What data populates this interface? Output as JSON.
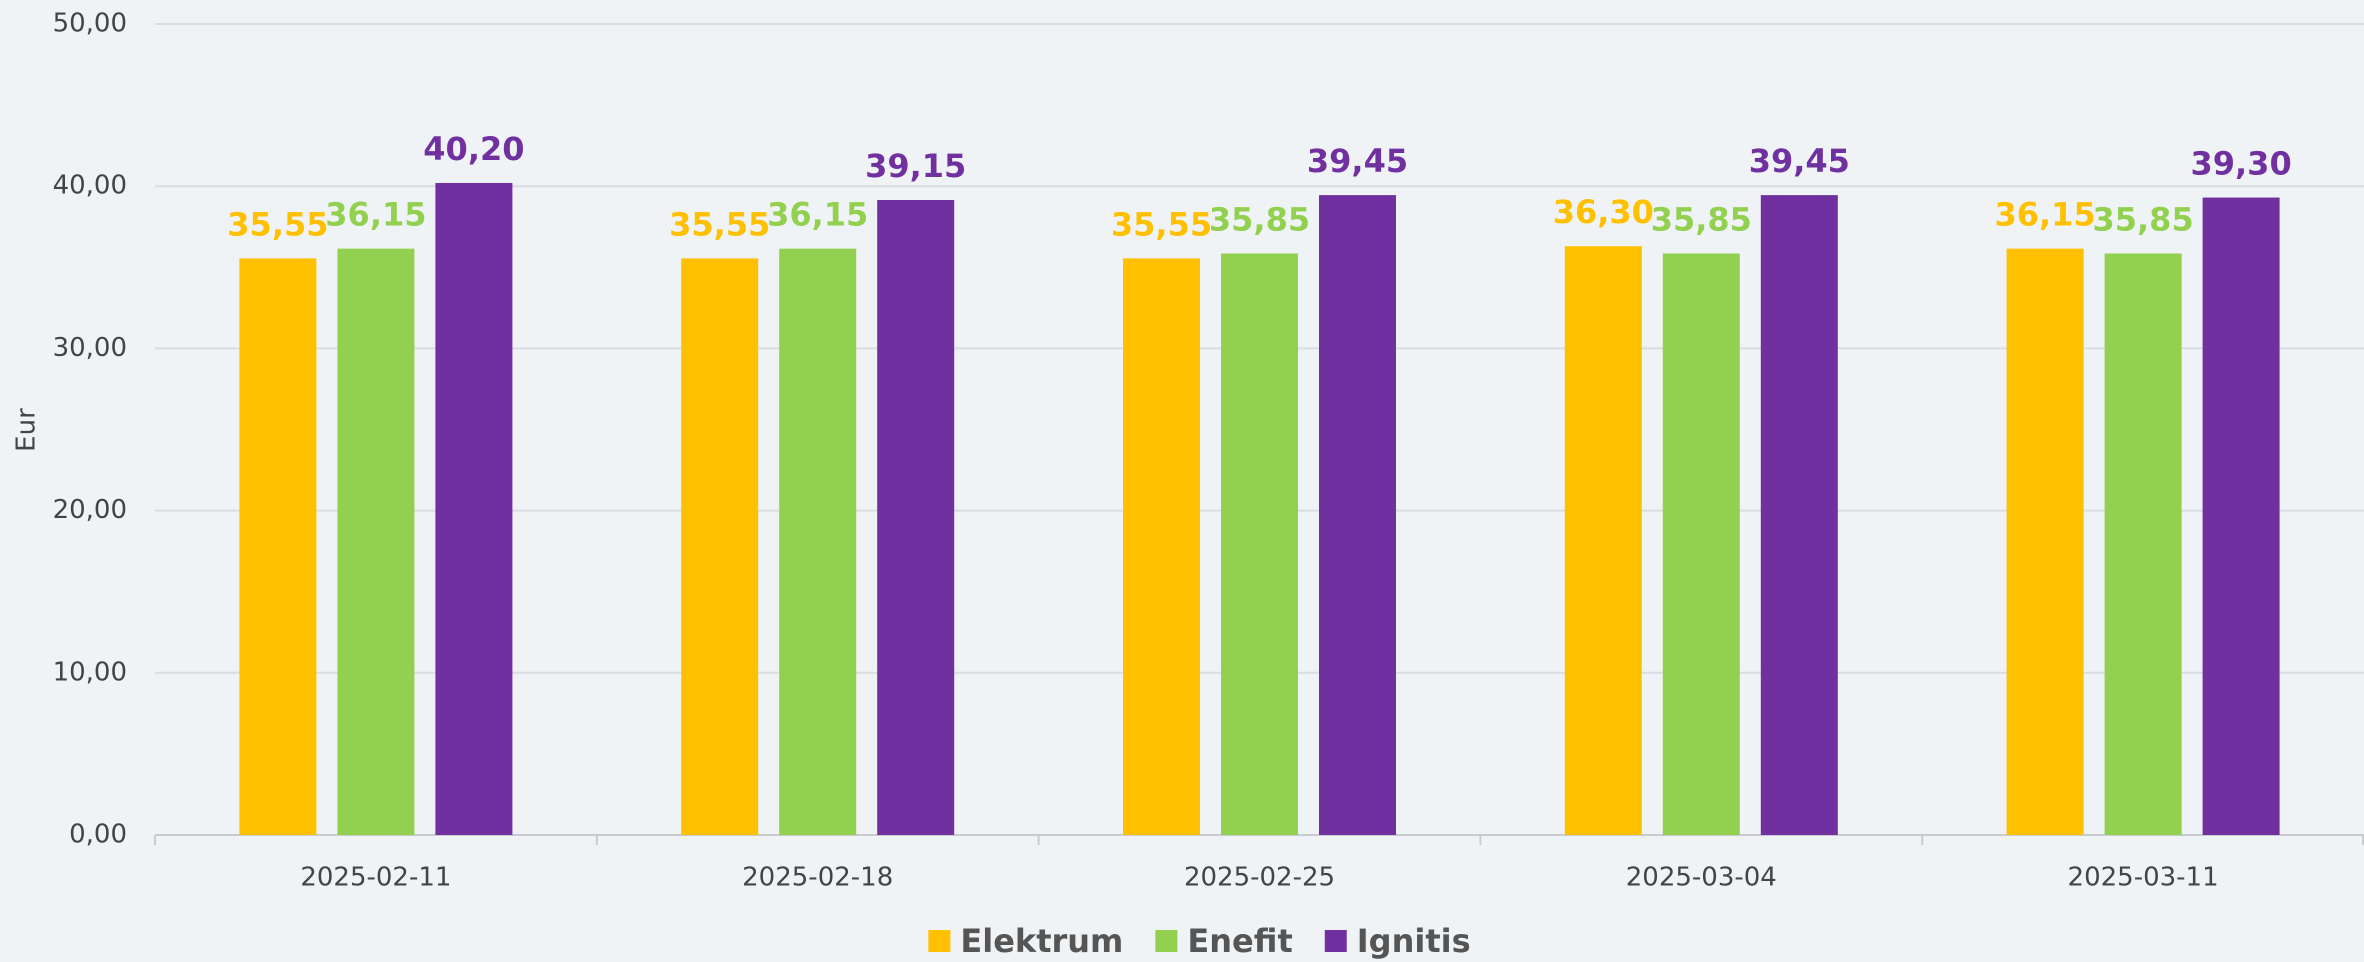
{
  "chart_data": {
    "type": "bar",
    "y_label": "Eur",
    "categories": [
      "2025-02-11",
      "2025-02-18",
      "2025-02-25",
      "2025-03-04",
      "2025-03-11"
    ],
    "series": [
      {
        "name": "Elektrum",
        "color": "#ffc000",
        "values": [
          35.55,
          35.55,
          35.55,
          36.3,
          36.15
        ],
        "value_labels": [
          "35,55",
          "35,55",
          "35,55",
          "36,30",
          "36,15"
        ]
      },
      {
        "name": "Enefit",
        "color": "#92d050",
        "values": [
          36.15,
          36.15,
          35.85,
          35.85,
          35.85
        ],
        "value_labels": [
          "36,15",
          "36,15",
          "35,85",
          "35,85",
          "35,85"
        ]
      },
      {
        "name": "Ignitis",
        "color": "#7030a0",
        "values": [
          40.2,
          39.15,
          39.45,
          39.45,
          39.3
        ],
        "value_labels": [
          "40,20",
          "39,15",
          "39,45",
          "39,45",
          "39,30"
        ]
      }
    ],
    "ylim": [
      0,
      50
    ],
    "yticks": [
      {
        "value": 0,
        "label": "0,00"
      },
      {
        "value": 10,
        "label": "10,00"
      },
      {
        "value": 20,
        "label": "20,00"
      },
      {
        "value": 30,
        "label": "30,00"
      },
      {
        "value": 40,
        "label": "40,00"
      },
      {
        "value": 50,
        "label": "50,00"
      }
    ],
    "grid": true,
    "legend": "bottom"
  }
}
